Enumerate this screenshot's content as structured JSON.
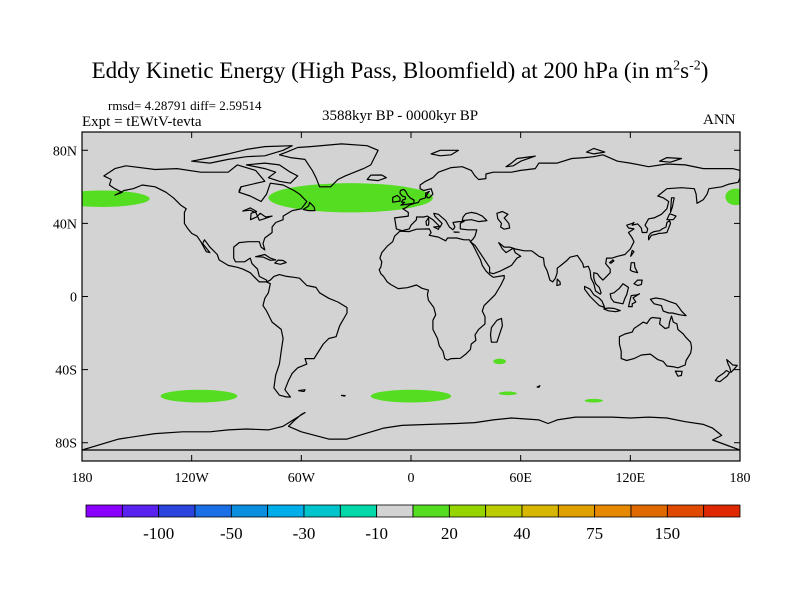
{
  "title": {
    "text": "Eddy Kinetic Energy (High Pass, Bloomfield) at 200 hPa (in m",
    "sup1": "2",
    "mid": "s",
    "sup2": "-2",
    "close": ")"
  },
  "stats": "rmsd= 4.28791  diff= 2.59514",
  "expt": "Expt = tEWtV-tevta",
  "period": "3588kyr BP - 0000kyr BP",
  "season": "ANN",
  "map": {
    "projection": "cylindrical-equidistant",
    "lon_range": [
      -180,
      180
    ],
    "lat_range": [
      -90,
      90
    ],
    "ocean_fill": "#d3d3d3",
    "coast_color": "#000000",
    "lat_ticks": [
      {
        "value": 80,
        "label": "80N"
      },
      {
        "value": 40,
        "label": "40N"
      },
      {
        "value": 0,
        "label": "0"
      },
      {
        "value": -40,
        "label": "40S"
      },
      {
        "value": -80,
        "label": "80S"
      }
    ],
    "lon_ticks": [
      {
        "value": -180,
        "label": "180"
      },
      {
        "value": -120,
        "label": "120W"
      },
      {
        "value": -60,
        "label": "60W"
      },
      {
        "value": 0,
        "label": "0"
      },
      {
        "value": 60,
        "label": "60E"
      },
      {
        "value": 120,
        "label": "120E"
      },
      {
        "value": 180,
        "label": "180"
      }
    ],
    "anomaly_regions": [
      {
        "name": "north-pacific-west",
        "color": "#55dd22",
        "lon": [
          -180,
          -143
        ],
        "lat": [
          49,
          58
        ]
      },
      {
        "name": "north-pacific-east",
        "color": "#55dd22",
        "lon": [
          172,
          180
        ],
        "lat": [
          50,
          59
        ]
      },
      {
        "name": "north-atlantic",
        "color": "#55dd22",
        "lon": [
          -78,
          12
        ],
        "lat": [
          46,
          62
        ]
      },
      {
        "name": "south-pacific",
        "color": "#55dd22",
        "lon": [
          -137,
          -95
        ],
        "lat": [
          -58,
          -51
        ]
      },
      {
        "name": "south-atlantic",
        "color": "#55dd22",
        "lon": [
          -22,
          22
        ],
        "lat": [
          -58,
          -51
        ]
      },
      {
        "name": "indian-ocean-patch-1",
        "color": "#55dd22",
        "lon": [
          45,
          52
        ],
        "lat": [
          -37,
          -34
        ]
      },
      {
        "name": "indian-ocean-patch-2",
        "color": "#55dd22",
        "lon": [
          48,
          58
        ],
        "lat": [
          -54,
          -52
        ]
      },
      {
        "name": "indian-ocean-patch-3",
        "color": "#55dd22",
        "lon": [
          95,
          105
        ],
        "lat": [
          -58,
          -56
        ]
      }
    ]
  },
  "colorbar": {
    "colors": [
      "#8a00ff",
      "#5a22ee",
      "#2a44dd",
      "#1a6ee6",
      "#0a8ee0",
      "#00aeea",
      "#00c4cc",
      "#00d8a8",
      "#d3d3d3",
      "#55dd22",
      "#96d400",
      "#bccc00",
      "#d6b600",
      "#e0a000",
      "#e68800",
      "#e06a00",
      "#e04a00",
      "#e02800"
    ],
    "labels": [
      {
        "after_box": 2,
        "text": "-100"
      },
      {
        "after_box": 4,
        "text": "-50"
      },
      {
        "after_box": 6,
        "text": "-30"
      },
      {
        "after_box": 8,
        "text": "-10"
      },
      {
        "after_box": 10,
        "text": "20"
      },
      {
        "after_box": 12,
        "text": "40"
      },
      {
        "after_box": 14,
        "text": "75"
      },
      {
        "after_box": 16,
        "text": "150"
      }
    ]
  }
}
